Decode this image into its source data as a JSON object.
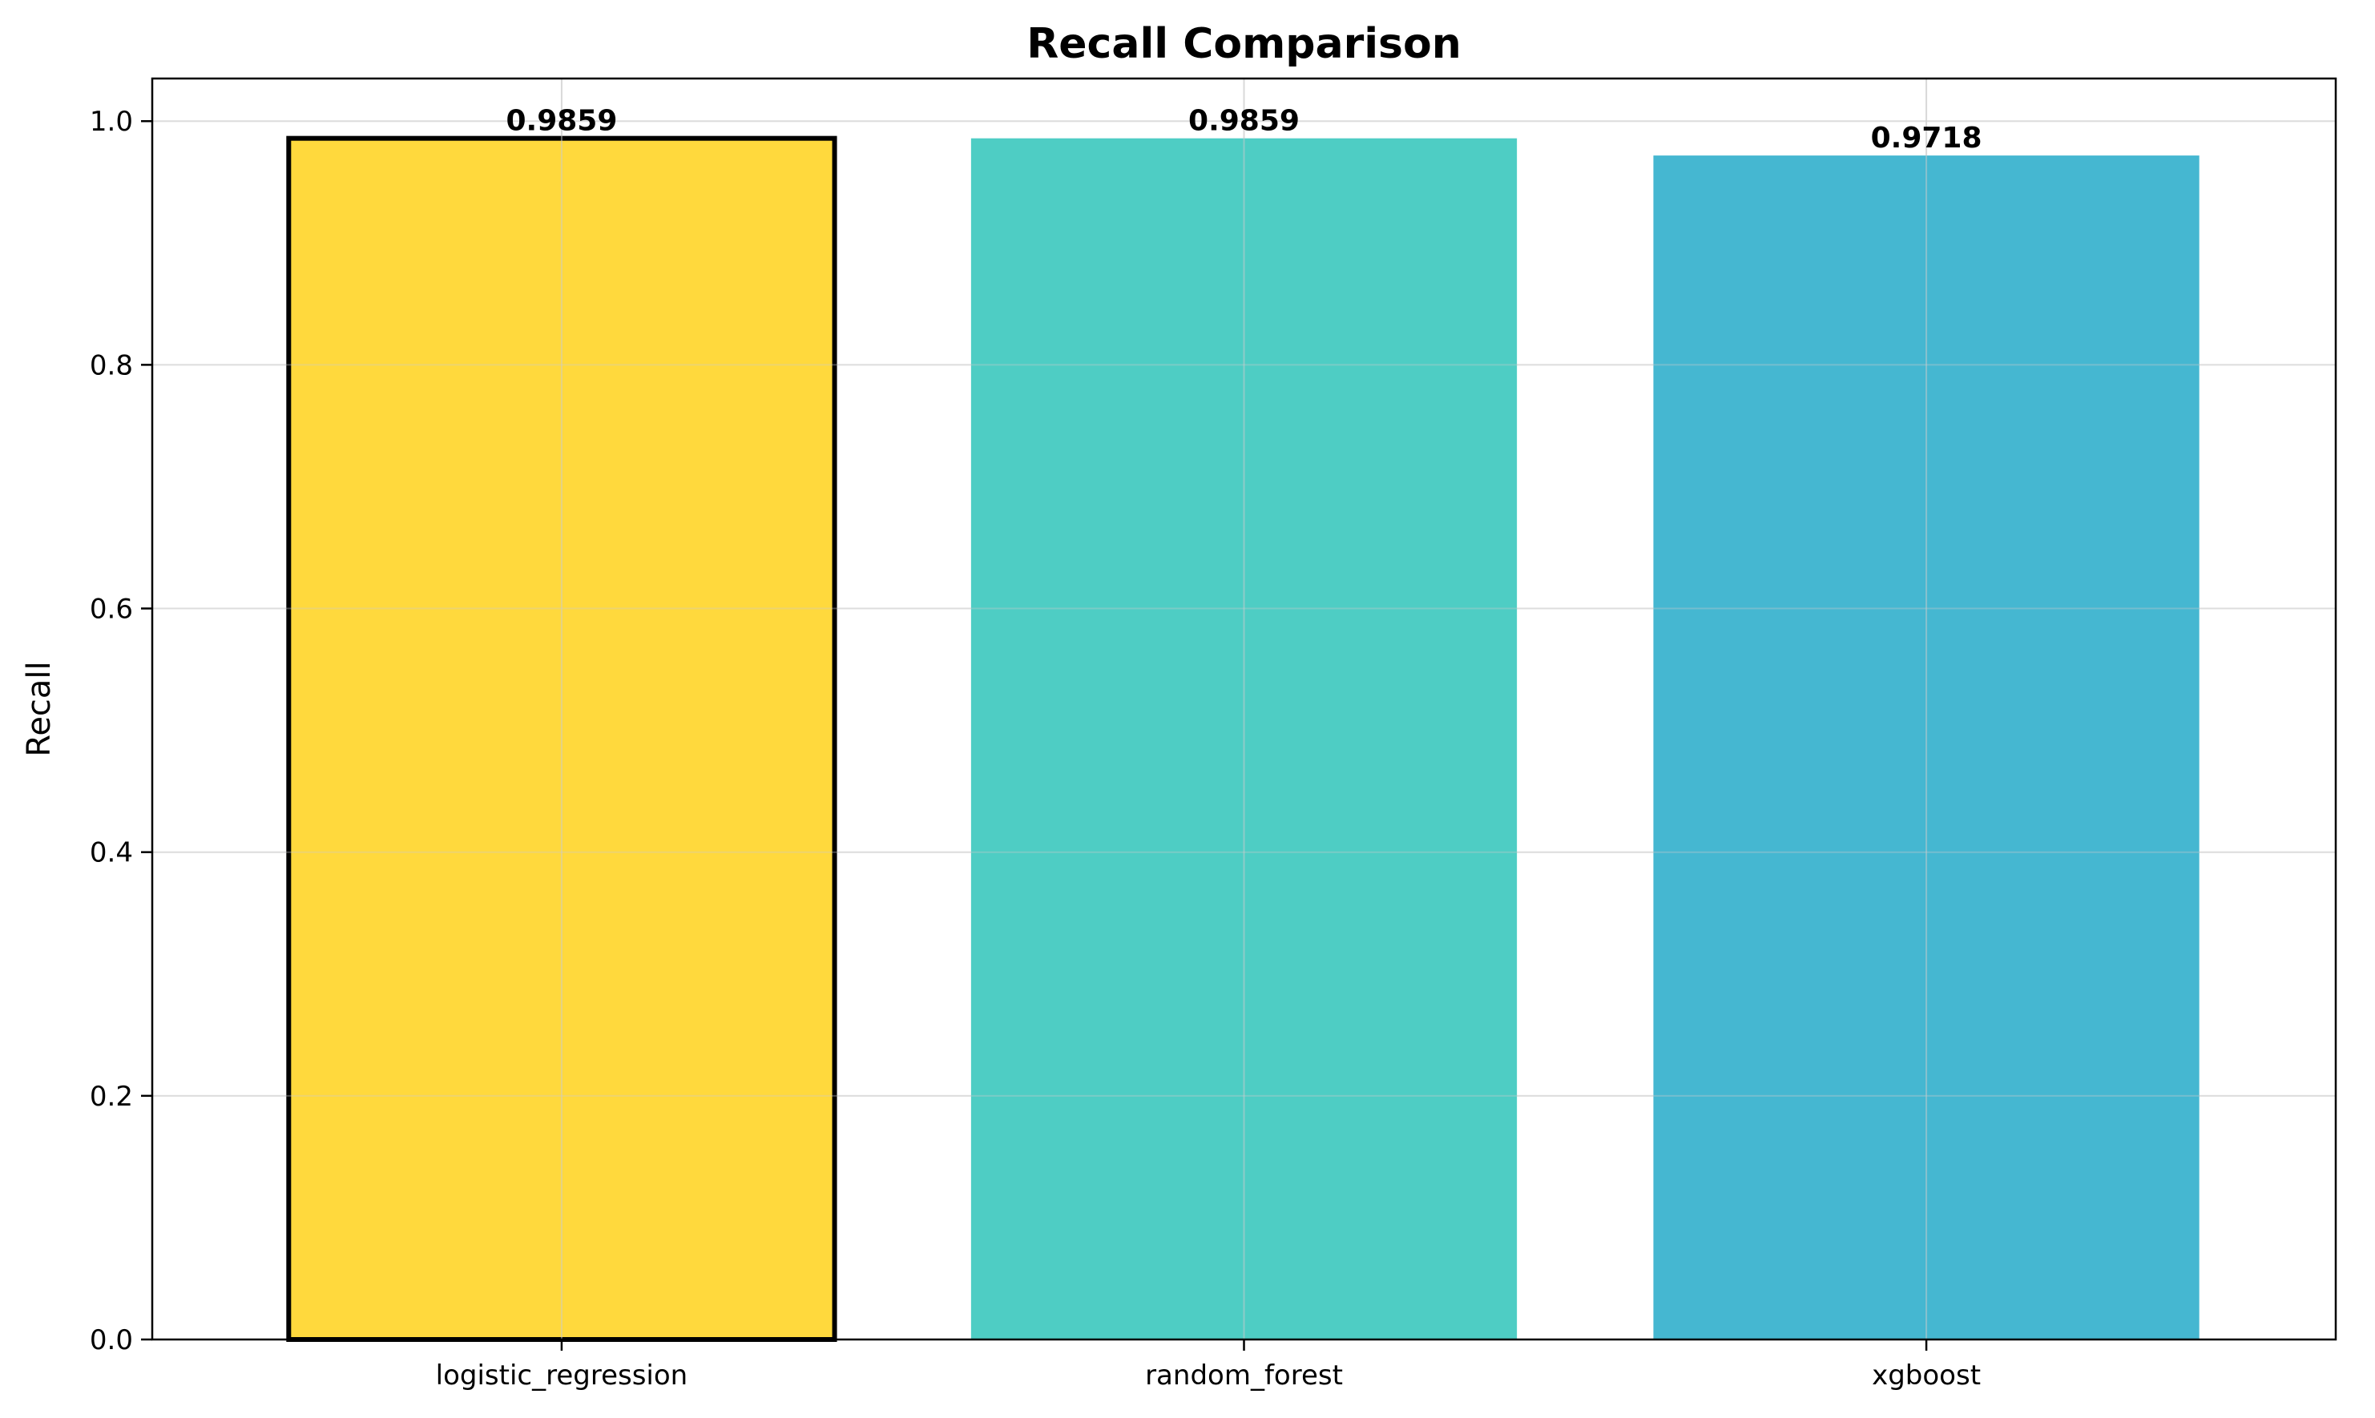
{
  "chart_data": {
    "type": "bar",
    "title": "Recall Comparison",
    "xlabel": "",
    "ylabel": "Recall",
    "categories": [
      "logistic_regression",
      "random_forest",
      "xgboost"
    ],
    "values": [
      0.9859,
      0.9859,
      0.9718
    ],
    "value_labels": [
      "0.9859",
      "0.9859",
      "0.9718"
    ],
    "bar_colors": [
      "#FFD93D",
      "#4ECDC4",
      "#45B7D1"
    ],
    "highlighted_index": 0,
    "highlight_edge_color": "#000000",
    "ylim": [
      0,
      1.035
    ],
    "yticks": [
      0.0,
      0.2,
      0.4,
      0.6,
      0.8,
      1.0
    ],
    "ytick_labels": [
      "0.0",
      "0.2",
      "0.4",
      "0.6",
      "0.8",
      "1.0"
    ],
    "grid": true,
    "grid_color": "#e6e6e6",
    "legend": "none"
  }
}
